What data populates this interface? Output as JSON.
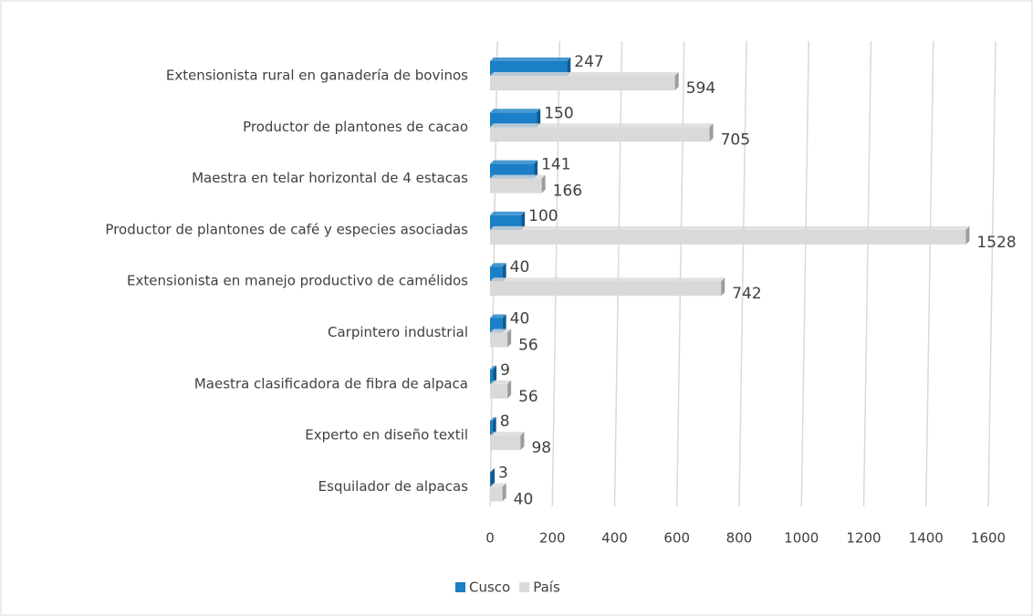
{
  "chart_data": {
    "type": "bar",
    "orientation": "horizontal",
    "categories": [
      "Extensionista rural en ganadería de bovinos",
      "Productor de plantones de cacao",
      "Maestra en telar horizontal de 4 estacas",
      "Productor de plantones de café y especies asociadas",
      "Extensionista en manejo productivo de camélidos",
      "Carpintero industrial",
      "Maestra clasificadora de fibra de alpaca",
      "Experto en diseño textil",
      "Esquilador de alpacas"
    ],
    "series": [
      {
        "name": "Cusco",
        "color": "#1a7fc6",
        "values": [
          247,
          150,
          141,
          100,
          40,
          40,
          9,
          8,
          3
        ]
      },
      {
        "name": "País",
        "color": "#d9d9d9",
        "values": [
          594,
          705,
          166,
          1528,
          742,
          56,
          56,
          98,
          40
        ]
      }
    ],
    "xlim": [
      0,
      1600
    ],
    "xticks": [
      0,
      200,
      400,
      600,
      800,
      1000,
      1200,
      1400,
      1600
    ],
    "grid": true,
    "legend": "bottom"
  }
}
